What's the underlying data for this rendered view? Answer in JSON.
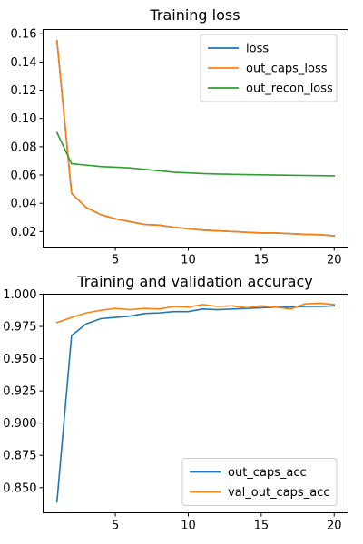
{
  "chart_data": [
    {
      "type": "line",
      "title": "Training loss",
      "xlabel": "",
      "ylabel": "",
      "xlim": [
        0.05,
        20.95
      ],
      "ylim": [
        0.009,
        0.163
      ],
      "xticks": [
        5,
        10,
        15,
        20
      ],
      "xtick_labels": [
        "5",
        "10",
        "15",
        "20"
      ],
      "yticks": [
        0.02,
        0.04,
        0.06,
        0.08,
        0.1,
        0.12,
        0.14,
        0.16
      ],
      "ytick_labels": [
        "0.02",
        "0.04",
        "0.06",
        "0.08",
        "0.10",
        "0.12",
        "0.14",
        "0.16"
      ],
      "grid": false,
      "legend_position": "top-right",
      "x": [
        1,
        2,
        3,
        4,
        5,
        6,
        7,
        8,
        9,
        10,
        11,
        12,
        13,
        14,
        15,
        16,
        17,
        18,
        19,
        20
      ],
      "series": [
        {
          "name": "loss",
          "color": "#1f77b4",
          "values": [
            0.155,
            0.047,
            0.037,
            0.032,
            0.029,
            0.027,
            0.025,
            0.0245,
            0.023,
            0.022,
            0.021,
            0.0205,
            0.02,
            0.0195,
            0.019,
            0.019,
            0.0185,
            0.018,
            0.0178,
            0.017
          ]
        },
        {
          "name": "out_caps_loss",
          "color": "#ff7f0e",
          "values": [
            0.155,
            0.047,
            0.037,
            0.032,
            0.029,
            0.027,
            0.025,
            0.0245,
            0.023,
            0.022,
            0.021,
            0.0205,
            0.02,
            0.0195,
            0.019,
            0.019,
            0.0185,
            0.018,
            0.0178,
            0.017
          ]
        },
        {
          "name": "out_recon_loss",
          "color": "#2ca02c",
          "values": [
            0.09,
            0.068,
            0.067,
            0.066,
            0.0655,
            0.065,
            0.064,
            0.063,
            0.062,
            0.0615,
            0.061,
            0.0607,
            0.0605,
            0.0603,
            0.0601,
            0.06,
            0.0598,
            0.0597,
            0.0596,
            0.0594
          ]
        }
      ]
    },
    {
      "type": "line",
      "title": "Training and validation accuracy",
      "xlabel": "",
      "ylabel": "",
      "xlim": [
        0.05,
        20.95
      ],
      "ylim": [
        0.8305,
        1.0
      ],
      "xticks": [
        5,
        10,
        15,
        20
      ],
      "xtick_labels": [
        "5",
        "10",
        "15",
        "20"
      ],
      "yticks": [
        0.85,
        0.875,
        0.9,
        0.925,
        0.95,
        0.975,
        1.0
      ],
      "ytick_labels": [
        "0.850",
        "0.875",
        "0.900",
        "0.925",
        "0.950",
        "0.975",
        "1.000"
      ],
      "grid": false,
      "legend_position": "bottom-right",
      "x": [
        1,
        2,
        3,
        4,
        5,
        6,
        7,
        8,
        9,
        10,
        11,
        12,
        13,
        14,
        15,
        16,
        17,
        18,
        19,
        20
      ],
      "series": [
        {
          "name": "out_caps_acc",
          "color": "#1f77b4",
          "values": [
            0.839,
            0.968,
            0.977,
            0.981,
            0.982,
            0.983,
            0.985,
            0.9855,
            0.9865,
            0.9865,
            0.9885,
            0.988,
            0.9885,
            0.989,
            0.9895,
            0.99,
            0.99,
            0.9905,
            0.9905,
            0.991
          ]
        },
        {
          "name": "val_out_caps_acc",
          "color": "#ff7f0e",
          "values": [
            0.978,
            0.982,
            0.9855,
            0.9875,
            0.989,
            0.988,
            0.989,
            0.9885,
            0.9905,
            0.99,
            0.992,
            0.9905,
            0.991,
            0.9895,
            0.991,
            0.99,
            0.9885,
            0.9925,
            0.993,
            0.992
          ]
        }
      ]
    }
  ]
}
